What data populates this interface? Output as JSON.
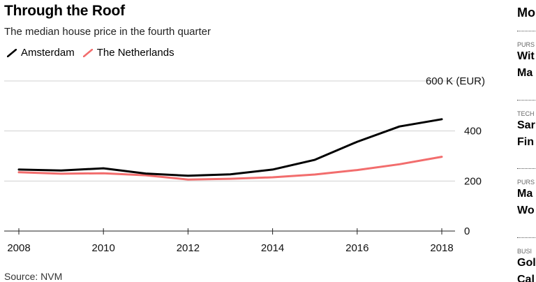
{
  "chart_data": {
    "type": "line",
    "title": "Through the Roof",
    "subtitle": "The median house price in the fourth quarter",
    "unit_label": "600 K (EUR)",
    "x": [
      2008,
      2009,
      2010,
      2011,
      2012,
      2013,
      2014,
      2015,
      2016,
      2017,
      2018
    ],
    "x_ticks": [
      "2008",
      "2010",
      "2012",
      "2014",
      "2016",
      "2018"
    ],
    "y_ticks": [
      "0",
      "200",
      "400"
    ],
    "ylim": [
      0,
      600
    ],
    "grid": true,
    "legend_position": "top-left",
    "series": [
      {
        "name": "Amsterdam",
        "color": "#000000",
        "values": [
          246,
          242,
          251,
          230,
          221,
          227,
          246,
          285,
          357,
          418,
          447
        ]
      },
      {
        "name": "The Netherlands",
        "color": "#f26d6d",
        "values": [
          235,
          229,
          231,
          223,
          206,
          209,
          215,
          226,
          244,
          267,
          297
        ]
      }
    ],
    "source": "Source: NVM"
  },
  "sidebar": {
    "heading": "Mo",
    "items": [
      {
        "kicker": "PURS",
        "line1": "Wit",
        "line2": "Ma"
      },
      {
        "kicker": "TECH",
        "line1": "Sar",
        "line2": "Fin"
      },
      {
        "kicker": "PURS",
        "line1": "Ma",
        "line2": "Wo"
      },
      {
        "kicker": "BUSI",
        "line1": "Gol",
        "line2": "Cal"
      }
    ]
  }
}
